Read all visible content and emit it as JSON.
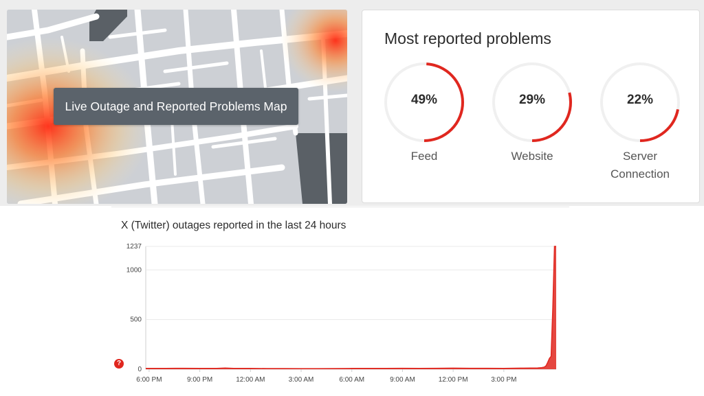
{
  "map": {
    "label": "Live Outage and Reported Problems Map"
  },
  "problems": {
    "title": "Most reported problems",
    "items": [
      {
        "value": "49%",
        "fraction": 0.49,
        "label_lines": [
          "Feed"
        ]
      },
      {
        "value": "29%",
        "fraction": 0.29,
        "label_lines": [
          "Website"
        ]
      },
      {
        "value": "22%",
        "fraction": 0.22,
        "label_lines": [
          "Server",
          "Connection"
        ]
      }
    ],
    "accent_color": "#e0271f",
    "track_color": "#f0f0f0"
  },
  "chart": {
    "title": "X (Twitter) outages reported in the last 24 hours",
    "help_glyph": "?"
  },
  "chart_data": {
    "type": "area",
    "title": "X (Twitter) outages reported in the last 24 hours",
    "xlabel": "",
    "ylabel": "",
    "ylim": [
      0,
      1237
    ],
    "y_ticks": [
      0,
      500,
      1000,
      1237
    ],
    "x_ticks": [
      "6:00 PM",
      "9:00 PM",
      "12:00 AM",
      "3:00 AM",
      "6:00 AM",
      "9:00 AM",
      "12:00 PM",
      "3:00 PM"
    ],
    "x_tick_hours": [
      0,
      3,
      6,
      9,
      12,
      15,
      18,
      21
    ],
    "x_range_hours": [
      -0.2,
      24.1
    ],
    "grid": true,
    "legend": "none",
    "color": "#e0271f",
    "series": [
      {
        "x_hours": [
          -0.2,
          0,
          1,
          2,
          3,
          4,
          4.5,
          5,
          6,
          7,
          8,
          9,
          10,
          11,
          12,
          13,
          14,
          15,
          16,
          17,
          18,
          19,
          20,
          21,
          22,
          23,
          23.2,
          23.4,
          23.5,
          23.6,
          23.7,
          23.8,
          23.9,
          24.0,
          24.1
        ],
        "values": [
          8,
          8,
          9,
          10,
          9,
          8,
          12,
          9,
          8,
          7,
          7,
          6,
          6,
          7,
          8,
          8,
          9,
          10,
          9,
          10,
          11,
          10,
          10,
          9,
          11,
          13,
          15,
          22,
          35,
          70,
          110,
          130,
          620,
          1237,
          1237
        ]
      }
    ]
  }
}
